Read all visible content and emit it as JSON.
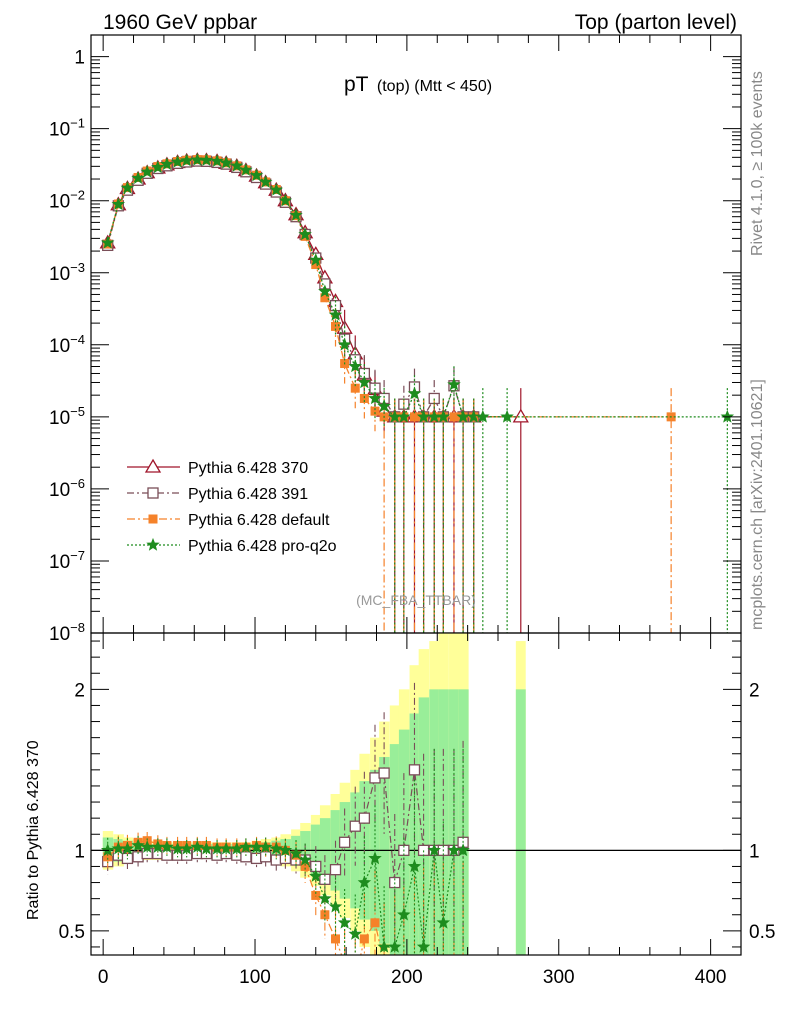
{
  "header": {
    "left": "1960 GeV ppbar",
    "right": "Top (parton level)"
  },
  "side_labels": {
    "rivet": "Rivet 4.1.0, ≥ 100k events",
    "mcplots": "mcplots.cern.ch [arXiv:2401.10621]"
  },
  "colors": {
    "s370": "#a0152a",
    "s391": "#7a4e58",
    "sdefault": "#f5822a",
    "sproq2o": "#1e8c1e",
    "band_yellow": "#ffff99",
    "band_green": "#99ee99"
  },
  "chart_data": [
    {
      "type": "line",
      "panel": "main",
      "title_main": "pT",
      "title_sub": "(top) (Mtt < 450)",
      "watermark": "(MC_FBA_TTBAR)",
      "yscale": "log",
      "ylim_exp": [
        -8,
        0.3
      ],
      "ytick_labels": [
        "10−8",
        "10−7",
        "10−6",
        "10−5",
        "10−4",
        "10−3",
        "10−2",
        "10−1",
        "1"
      ],
      "xlim": [
        -8,
        420
      ],
      "x": [
        3,
        10,
        16,
        23,
        29,
        36,
        42,
        49,
        55,
        62,
        68,
        75,
        81,
        88,
        94,
        101,
        107,
        114,
        120,
        127,
        133,
        140,
        146,
        153,
        159,
        166,
        172,
        179,
        185,
        192,
        198,
        205,
        211,
        218,
        224,
        231,
        237,
        244
      ],
      "series": [
        {
          "name": "Pythia 6.428 370",
          "marker": "triangle",
          "values": [
            0.0026,
            0.0088,
            0.0148,
            0.02,
            0.0245,
            0.0285,
            0.0315,
            0.034,
            0.0355,
            0.0362,
            0.036,
            0.035,
            0.033,
            0.03,
            0.0262,
            0.022,
            0.0178,
            0.014,
            0.01,
            0.0064,
            0.0036,
            0.0018,
            0.00085,
            0.0004,
            0.00017,
            7.5e-05,
            3.8e-05,
            2.4e-05,
            1.2e-05,
            1e-05,
            1e-05,
            1e-05,
            1e-05,
            1e-05,
            1e-05,
            1e-05,
            1e-05,
            1e-05
          ]
        },
        {
          "name": "Pythia 6.428 391",
          "marker": "square",
          "values": [
            0.0024,
            0.0085,
            0.014,
            0.0192,
            0.024,
            0.028,
            0.0305,
            0.033,
            0.0345,
            0.0355,
            0.0352,
            0.034,
            0.0322,
            0.029,
            0.0252,
            0.021,
            0.017,
            0.0132,
            0.0095,
            0.006,
            0.0034,
            0.0016,
            0.0007,
            0.00035,
            0.00012,
            6.2e-05,
            4e-05,
            2.5e-05,
            1.8e-05,
            1e-05,
            1.5e-05,
            2.6e-05,
            1e-05,
            1.8e-05,
            1e-05,
            2.7e-05,
            1e-05,
            1e-05
          ]
        },
        {
          "name": "Pythia 6.428 default",
          "marker": "square-filled",
          "values": [
            0.0025,
            0.009,
            0.0152,
            0.021,
            0.0258,
            0.0298,
            0.0325,
            0.035,
            0.0365,
            0.0372,
            0.037,
            0.0358,
            0.0336,
            0.0305,
            0.0268,
            0.0226,
            0.0182,
            0.0143,
            0.01,
            0.0062,
            0.0032,
            0.0013,
            0.00045,
            0.00018,
            5.5e-05,
            2.5e-05,
            1.8e-05,
            1.2e-05,
            1e-05,
            1e-05,
            1e-05,
            1e-05,
            1e-05,
            1e-05,
            1e-05,
            1e-05,
            1e-05,
            1e-05
          ]
        },
        {
          "name": "Pythia 6.428 pro-q2o",
          "marker": "star",
          "values": [
            0.0026,
            0.0089,
            0.015,
            0.0205,
            0.025,
            0.029,
            0.032,
            0.0345,
            0.036,
            0.0368,
            0.0365,
            0.0354,
            0.0335,
            0.0304,
            0.0266,
            0.0224,
            0.0181,
            0.0141,
            0.01,
            0.0063,
            0.0034,
            0.0015,
            0.00055,
            0.00026,
            0.0001,
            5e-05,
            3e-05,
            1.8e-05,
            1.4e-05,
            1e-05,
            1e-05,
            2.1e-05,
            1e-05,
            1e-05,
            1e-05,
            2.8e-05,
            1e-05,
            1e-05
          ]
        }
      ],
      "tail_points": [
        {
          "series": 0,
          "x": 275,
          "value": 1e-05
        },
        {
          "series": 2,
          "x": 374,
          "value": 1e-05
        },
        {
          "series": 3,
          "x": 250,
          "value": 1e-05
        },
        {
          "series": 3,
          "x": 266,
          "value": 1e-05
        },
        {
          "series": 3,
          "x": 411,
          "value": 1e-05
        }
      ]
    },
    {
      "type": "line",
      "panel": "ratio",
      "ylabel": "Ratio to Pythia 6.428 370",
      "ylim": [
        0.35,
        2.35
      ],
      "yticks": [
        "0.5",
        "1",
        "2"
      ],
      "xlim": [
        -8,
        420
      ],
      "xticks": [
        "0",
        "100",
        "200",
        "300",
        "400"
      ],
      "x": [
        3,
        10,
        16,
        23,
        29,
        36,
        42,
        49,
        55,
        62,
        68,
        75,
        81,
        88,
        94,
        101,
        107,
        114,
        120,
        127,
        133,
        140,
        146,
        153,
        159,
        166,
        172,
        179,
        185,
        192,
        198,
        205,
        211,
        218,
        224,
        231,
        237
      ],
      "series": [
        {
          "name": "Pythia 6.428 391",
          "values": [
            0.93,
            0.97,
            0.95,
            0.96,
            0.98,
            0.98,
            0.97,
            0.97,
            0.97,
            0.98,
            0.98,
            0.97,
            0.98,
            0.97,
            0.96,
            0.95,
            0.96,
            0.94,
            0.95,
            0.94,
            0.94,
            0.9,
            0.82,
            0.88,
            1.05,
            1.15,
            1.2,
            1.45,
            1.48,
            0.8,
            1.0,
            1.5,
            1.0,
            1.0,
            1.0,
            1.0,
            1.05
          ]
        },
        {
          "name": "Pythia 6.428 default",
          "values": [
            0.96,
            1.02,
            1.03,
            1.05,
            1.06,
            1.04,
            1.03,
            1.03,
            1.03,
            1.03,
            1.03,
            1.02,
            1.02,
            1.02,
            1.02,
            1.03,
            1.02,
            1.02,
            1.0,
            0.97,
            0.9,
            0.72,
            0.6,
            0.45,
            0.3,
            0.2,
            0.45,
            0.55,
            0.3,
            0.3,
            0.3,
            0.3,
            0.3,
            0.3,
            0.3,
            0.3,
            0.3
          ]
        },
        {
          "name": "Pythia 6.428 pro-q2o",
          "values": [
            1.0,
            1.01,
            1.01,
            1.03,
            1.02,
            1.02,
            1.02,
            1.01,
            1.01,
            1.02,
            1.01,
            1.01,
            1.01,
            1.01,
            1.02,
            1.02,
            1.02,
            1.01,
            1.0,
            0.98,
            0.94,
            0.84,
            0.7,
            0.65,
            0.55,
            0.48,
            0.8,
            0.95,
            0.4,
            0.4,
            0.6,
            0.9,
            0.4,
            1.0,
            0.55,
            1.0,
            1.0
          ]
        }
      ],
      "band_yellow_halfwidth": [
        0.12,
        0.1,
        0.08,
        0.07,
        0.06,
        0.06,
        0.05,
        0.05,
        0.05,
        0.05,
        0.05,
        0.05,
        0.05,
        0.05,
        0.05,
        0.06,
        0.07,
        0.08,
        0.1,
        0.13,
        0.17,
        0.22,
        0.28,
        0.35,
        0.42,
        0.5,
        0.6,
        0.7,
        0.8,
        0.9,
        1.0,
        1.15,
        1.25,
        1.3,
        1.35,
        1.4,
        1.4
      ],
      "band_green_halfwidth": [
        0.08,
        0.07,
        0.06,
        0.05,
        0.04,
        0.04,
        0.04,
        0.04,
        0.04,
        0.04,
        0.04,
        0.04,
        0.04,
        0.04,
        0.04,
        0.04,
        0.05,
        0.06,
        0.07,
        0.09,
        0.12,
        0.16,
        0.2,
        0.25,
        0.3,
        0.36,
        0.43,
        0.5,
        0.58,
        0.66,
        0.75,
        0.85,
        0.95,
        1.0,
        1.0,
        1.0,
        1.0
      ],
      "isolated_band": {
        "x": 275,
        "yellow_top": 2.3,
        "green_top": 2.0
      }
    }
  ]
}
